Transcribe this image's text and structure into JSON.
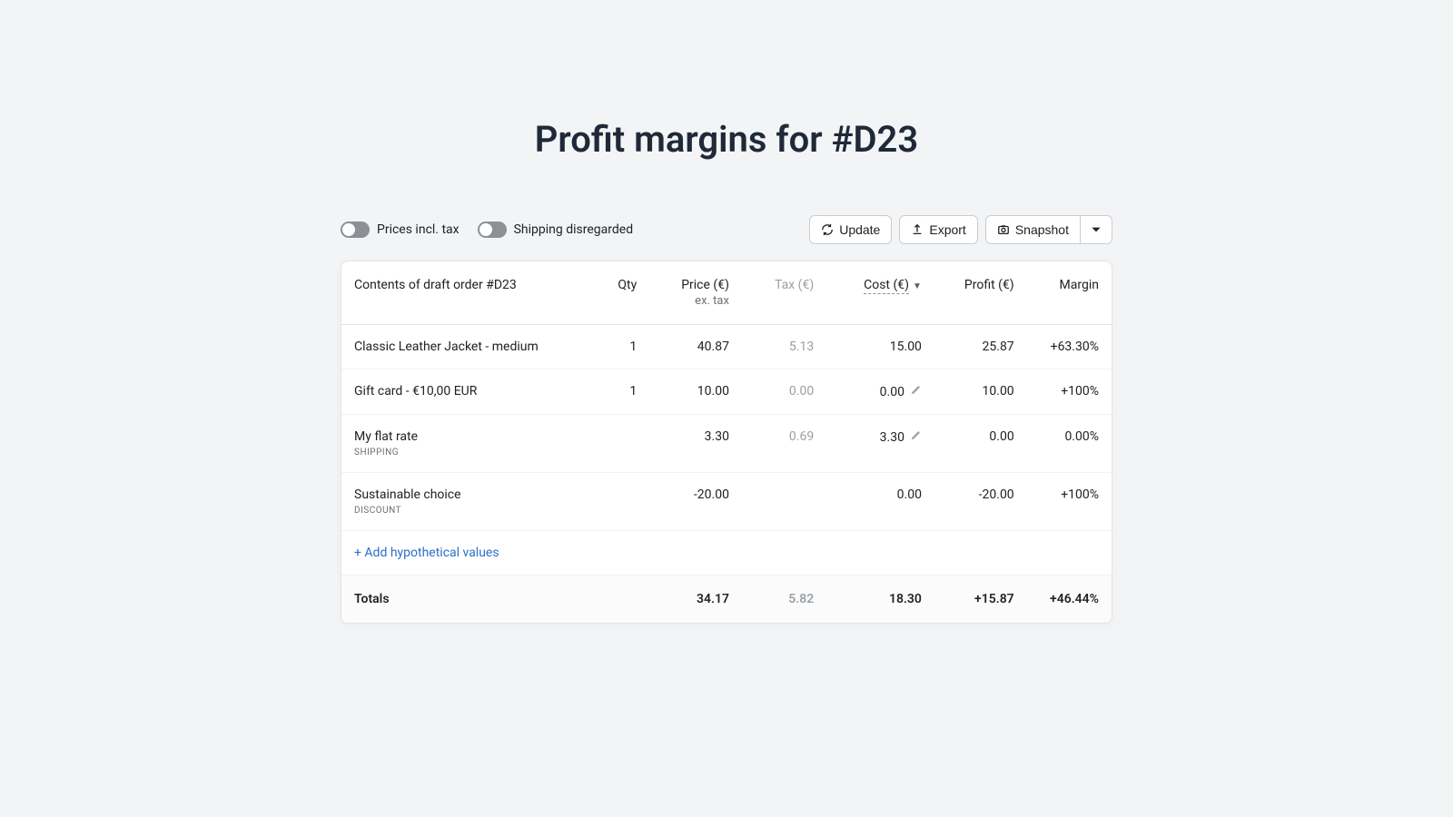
{
  "title": "Profit margins for #D23",
  "toggles": {
    "prices_incl_tax": "Prices incl. tax",
    "shipping_disregarded": "Shipping disregarded"
  },
  "buttons": {
    "update": "Update",
    "export": "Export",
    "snapshot": "Snapshot"
  },
  "columns": {
    "contents": "Contents of draft order #D23",
    "qty": "Qty",
    "price": "Price (€)",
    "price_sub": "ex. tax",
    "tax": "Tax (€)",
    "cost": "Cost (€)",
    "profit": "Profit (€)",
    "margin": "Margin"
  },
  "rows": [
    {
      "name": "Classic Leather Jacket - medium",
      "tag": "",
      "qty": "1",
      "price": "40.87",
      "tax": "5.13",
      "cost": "15.00",
      "editable": false,
      "profit": "25.87",
      "margin": "+63.30%"
    },
    {
      "name": "Gift card - €10,00 EUR",
      "tag": "",
      "qty": "1",
      "price": "10.00",
      "tax": "0.00",
      "cost": "0.00",
      "editable": true,
      "profit": "10.00",
      "margin": "+100%"
    },
    {
      "name": "My flat rate",
      "tag": "SHIPPING",
      "qty": "",
      "price": "3.30",
      "tax": "0.69",
      "cost": "3.30",
      "editable": true,
      "profit": "0.00",
      "margin": "0.00%"
    },
    {
      "name": "Sustainable choice",
      "tag": "DISCOUNT",
      "qty": "",
      "price": "-20.00",
      "tax": "",
      "cost": "0.00",
      "editable": false,
      "profit": "-20.00",
      "margin": "+100%"
    }
  ],
  "add_row": "+ Add hypothetical values",
  "totals": {
    "label": "Totals",
    "price": "34.17",
    "tax": "5.82",
    "cost": "18.30",
    "profit": "+15.87",
    "margin": "+46.44%"
  }
}
